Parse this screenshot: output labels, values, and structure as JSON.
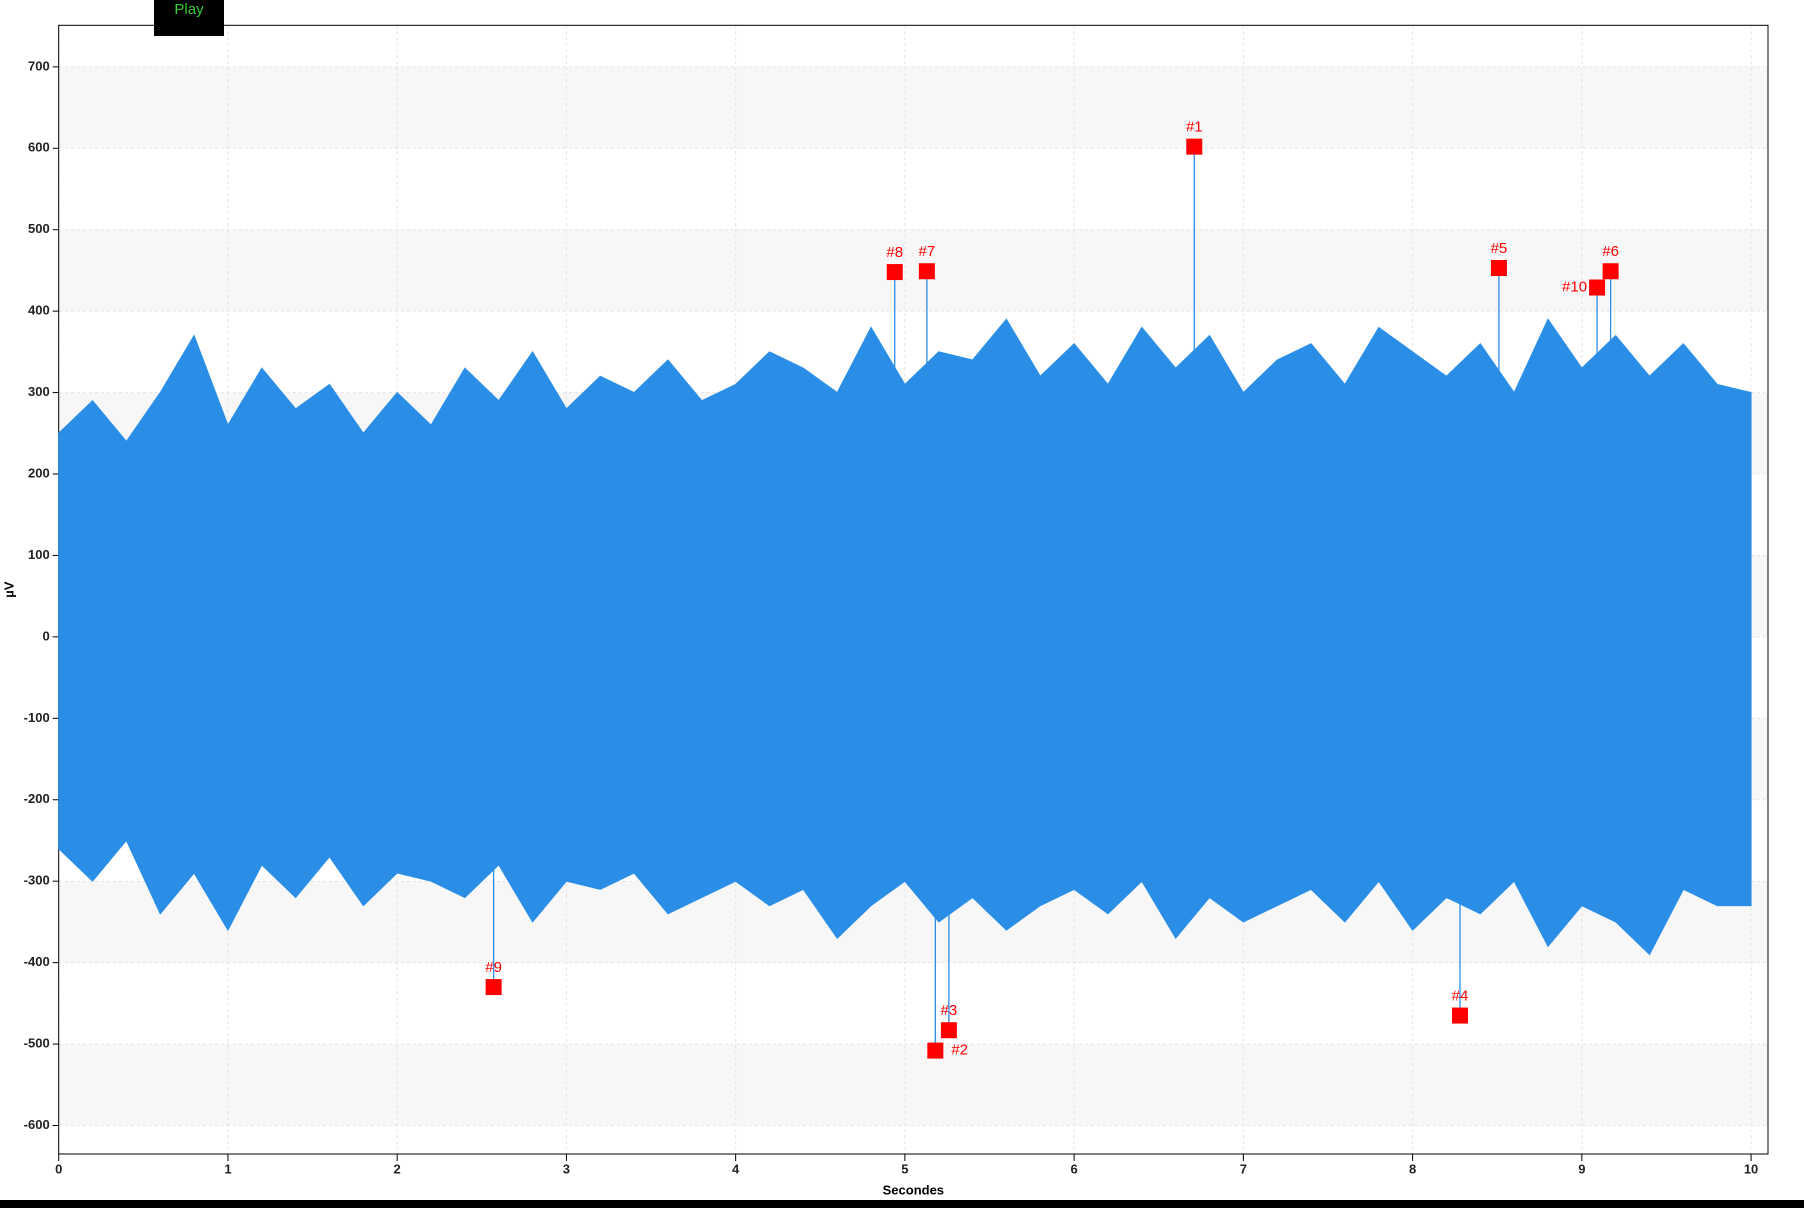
{
  "button": "Play",
  "chart_data": {
    "type": "line",
    "xlabel": "Secondes",
    "ylabel": "µV",
    "xlim": [
      0,
      10.1
    ],
    "ylim": [
      -635,
      751
    ],
    "xticks": [
      0,
      1,
      2,
      3,
      4,
      5,
      6,
      7,
      8,
      9,
      10
    ],
    "yticks": [
      -600,
      -500,
      -400,
      -300,
      -200,
      -100,
      0,
      100,
      200,
      300,
      400,
      500,
      600,
      700
    ],
    "grid": true,
    "trace": {
      "color": "#2b8ee6",
      "x": [
        0,
        0.2,
        0.4,
        0.6,
        0.8,
        1,
        1.2,
        1.4,
        1.6,
        1.8,
        2,
        2.2,
        2.4,
        2.6,
        2.8,
        3,
        3.2,
        3.4,
        3.6,
        3.8,
        4,
        4.2,
        4.4,
        4.6,
        4.8,
        5,
        5.2,
        5.4,
        5.6,
        5.8,
        6,
        6.2,
        6.4,
        6.6,
        6.8,
        7,
        7.2,
        7.4,
        7.6,
        7.8,
        8,
        8.2,
        8.4,
        8.6,
        8.8,
        9,
        9.2,
        9.4,
        9.6,
        9.8,
        10
      ],
      "upper": [
        250,
        290,
        240,
        300,
        370,
        260,
        330,
        280,
        310,
        250,
        300,
        260,
        330,
        290,
        350,
        280,
        320,
        300,
        340,
        290,
        310,
        350,
        330,
        300,
        380,
        310,
        350,
        340,
        390,
        320,
        360,
        310,
        380,
        330,
        370,
        300,
        340,
        360,
        310,
        380,
        350,
        320,
        360,
        300,
        390,
        330,
        370,
        320,
        360,
        310,
        300
      ],
      "lower": [
        -260,
        -300,
        -250,
        -340,
        -290,
        -360,
        -280,
        -320,
        -270,
        -330,
        -290,
        -300,
        -320,
        -280,
        -350,
        -300,
        -310,
        -290,
        -340,
        -320,
        -300,
        -330,
        -310,
        -370,
        -330,
        -300,
        -350,
        -320,
        -360,
        -330,
        -310,
        -340,
        -300,
        -370,
        -320,
        -350,
        -330,
        -310,
        -350,
        -300,
        -360,
        -320,
        -340,
        -300,
        -380,
        -330,
        -350,
        -390,
        -310,
        -330,
        -330
      ]
    },
    "points": {
      "color": "#ff0000",
      "x": [
        6.71,
        5.18,
        5.26,
        8.28,
        8.51,
        9.17,
        5.13,
        4.94,
        2.57,
        9.09
      ],
      "y": [
        602,
        -508,
        -483,
        -465,
        453,
        449,
        449,
        448,
        -430,
        429
      ],
      "labels": [
        "#1",
        "#2",
        "#3",
        "#4",
        "#5",
        "#6",
        "#7",
        "#8",
        "#9",
        "#10"
      ]
    }
  }
}
